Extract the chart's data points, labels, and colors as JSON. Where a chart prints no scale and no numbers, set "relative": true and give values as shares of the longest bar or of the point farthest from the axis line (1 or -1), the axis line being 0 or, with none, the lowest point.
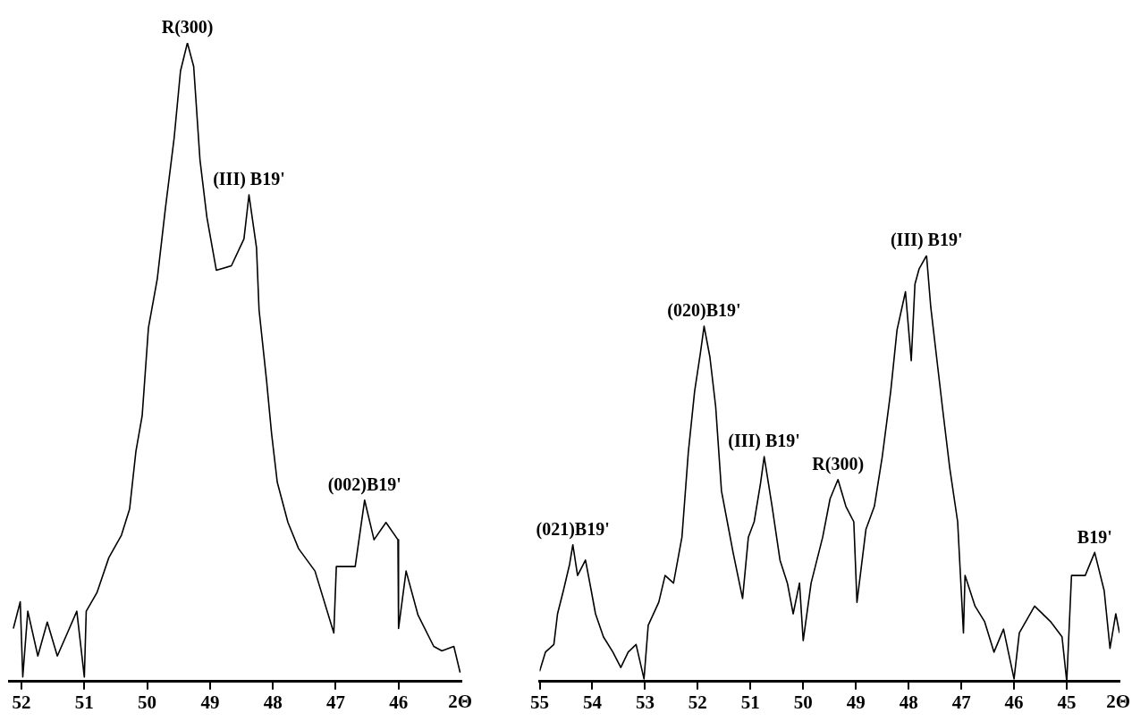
{
  "chart_data": [
    {
      "type": "line",
      "relative": true,
      "color": "#000000",
      "xlim": [
        52.2,
        45
      ],
      "xticks": [
        52,
        51,
        50,
        49,
        48,
        47,
        46
      ],
      "xlabel": "2Θ",
      "x": [
        52.13,
        52.02,
        51.98,
        51.9,
        51.74,
        51.59,
        51.43,
        51.27,
        51.12,
        51.0,
        50.97,
        50.8,
        50.61,
        50.41,
        50.28,
        50.18,
        50.08,
        49.98,
        49.84,
        49.71,
        49.57,
        49.47,
        49.36,
        49.26,
        49.16,
        49.05,
        48.9,
        48.66,
        48.46,
        48.38,
        48.26,
        48.22,
        48.1,
        48.02,
        47.93,
        47.76,
        47.59,
        47.33,
        47.03,
        46.99,
        46.69,
        46.54,
        46.39,
        46.2,
        46.01,
        46.0,
        45.88,
        45.69,
        45.44,
        45.31,
        45.12,
        45.02
      ],
      "values": [
        0.083,
        0.125,
        0.007,
        0.11,
        0.04,
        0.093,
        0.04,
        0.076,
        0.11,
        0.007,
        0.11,
        0.139,
        0.194,
        0.229,
        0.27,
        0.36,
        0.416,
        0.554,
        0.63,
        0.741,
        0.852,
        0.956,
        1.0,
        0.963,
        0.817,
        0.727,
        0.644,
        0.651,
        0.693,
        0.762,
        0.679,
        0.582,
        0.471,
        0.388,
        0.312,
        0.249,
        0.208,
        0.173,
        0.076,
        0.18,
        0.18,
        0.284,
        0.222,
        0.249,
        0.222,
        0.083,
        0.173,
        0.104,
        0.055,
        0.048,
        0.055,
        0.014
      ],
      "annotations": [
        {
          "text": "R(300)",
          "x": 49.36,
          "y": 1.0
        },
        {
          "text": "(III) B19'",
          "x": 48.38,
          "y": 0.762
        },
        {
          "text": "(002)B19'",
          "x": 46.54,
          "y": 0.284
        }
      ]
    },
    {
      "type": "line",
      "relative": true,
      "color": "#000000",
      "xlim": [
        55,
        44
      ],
      "xticks": [
        55,
        54,
        53,
        52,
        51,
        50,
        49,
        48,
        47,
        46,
        45
      ],
      "xlabel": "2Θ",
      "x": [
        55.0,
        54.89,
        54.73,
        54.66,
        54.55,
        54.43,
        54.37,
        54.28,
        54.13,
        54.02,
        53.94,
        53.79,
        53.61,
        53.46,
        53.32,
        53.17,
        53.02,
        52.94,
        52.74,
        52.62,
        52.46,
        52.3,
        52.18,
        52.06,
        51.95,
        51.88,
        51.77,
        51.66,
        51.55,
        51.44,
        51.33,
        51.15,
        51.04,
        50.93,
        50.81,
        50.74,
        50.59,
        50.44,
        50.3,
        50.19,
        50.07,
        50.0,
        49.85,
        49.63,
        49.49,
        49.34,
        49.19,
        49.04,
        48.98,
        48.81,
        48.65,
        48.5,
        48.34,
        48.22,
        48.06,
        47.95,
        47.88,
        47.8,
        47.66,
        47.58,
        47.47,
        47.36,
        47.22,
        47.07,
        46.96,
        46.93,
        46.74,
        46.56,
        46.38,
        46.2,
        46.0,
        45.9,
        45.61,
        45.31,
        45.09,
        45.0,
        44.91,
        44.65,
        44.47,
        44.29,
        44.18,
        44.07,
        44.0
      ],
      "values": [
        0.024,
        0.069,
        0.087,
        0.159,
        0.213,
        0.276,
        0.321,
        0.249,
        0.285,
        0.213,
        0.159,
        0.105,
        0.069,
        0.033,
        0.069,
        0.087,
        0.006,
        0.132,
        0.186,
        0.249,
        0.231,
        0.339,
        0.537,
        0.681,
        0.771,
        0.834,
        0.762,
        0.645,
        0.447,
        0.375,
        0.303,
        0.195,
        0.339,
        0.375,
        0.465,
        0.528,
        0.411,
        0.285,
        0.231,
        0.159,
        0.231,
        0.096,
        0.231,
        0.339,
        0.429,
        0.474,
        0.411,
        0.375,
        0.186,
        0.357,
        0.411,
        0.528,
        0.681,
        0.825,
        0.915,
        0.753,
        0.933,
        0.969,
        1.0,
        0.879,
        0.762,
        0.645,
        0.501,
        0.375,
        0.114,
        0.249,
        0.177,
        0.141,
        0.069,
        0.123,
        0.006,
        0.114,
        0.177,
        0.141,
        0.105,
        0.0,
        0.249,
        0.249,
        0.303,
        0.213,
        0.078,
        0.159,
        0.114
      ],
      "annotations": [
        {
          "text": "(021)B19'",
          "x": 54.37,
          "y": 0.321
        },
        {
          "text": "(020)B19'",
          "x": 51.88,
          "y": 0.834
        },
        {
          "text": "(III) B19'",
          "x": 50.74,
          "y": 0.528
        },
        {
          "text": "R(300)",
          "x": 49.34,
          "y": 0.474
        },
        {
          "text": "(III) B19'",
          "x": 47.66,
          "y": 1.0
        },
        {
          "text": "B19'",
          "x": 44.47,
          "y": 0.303
        }
      ]
    }
  ]
}
